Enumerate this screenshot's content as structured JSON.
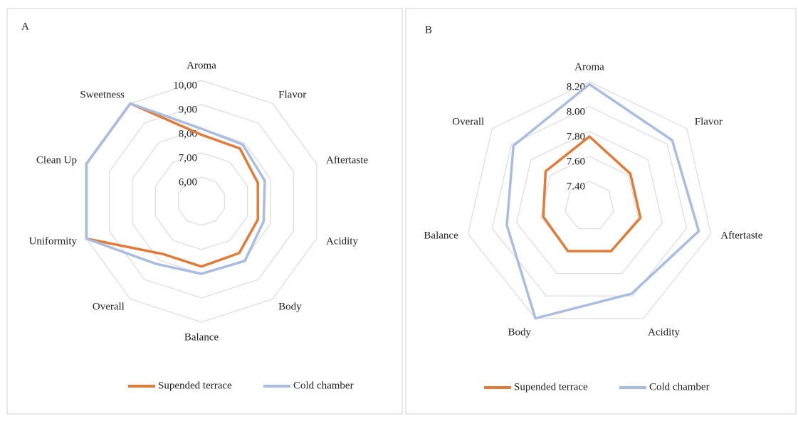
{
  "chart_data": [
    {
      "type": "radar",
      "title": "A",
      "categories": [
        "Aroma",
        "Flavor",
        "Aftertaste",
        "Acidity",
        "Body",
        "Balance",
        "Overall",
        "Uniformity",
        "Clean Up",
        "Sweetness"
      ],
      "ylim": [
        5,
        10
      ],
      "yticks": [
        {
          "value": 6,
          "label": "6,00"
        },
        {
          "value": 7,
          "label": "7,00"
        },
        {
          "value": 8,
          "label": "8,00"
        },
        {
          "value": 9,
          "label": "9,00"
        },
        {
          "value": 10,
          "label": "10,00"
        }
      ],
      "legend": "bottom",
      "series": [
        {
          "name": "Supended terrace",
          "color": "#e07b39",
          "values": [
            7.75,
            7.7,
            7.45,
            7.45,
            7.65,
            7.7,
            7.7,
            10,
            10,
            10
          ]
        },
        {
          "name": "Cold chamber",
          "color": "#a9bde2",
          "values": [
            8.0,
            7.9,
            7.75,
            7.7,
            8.05,
            8.0,
            8.2,
            10,
            10,
            10
          ]
        }
      ]
    },
    {
      "type": "radar",
      "title": "B",
      "categories": [
        "Aroma",
        "Flavor",
        "Aftertaste",
        "Acidity",
        "Body",
        "Balance",
        "Overall"
      ],
      "ylim": [
        7.2,
        8.2
      ],
      "yticks": [
        {
          "value": 7.4,
          "label": "7.40"
        },
        {
          "value": 7.6,
          "label": "7.60"
        },
        {
          "value": 7.8,
          "label": "7.80"
        },
        {
          "value": 8.0,
          "label": "8.00"
        },
        {
          "value": 8.2,
          "label": "8.20"
        }
      ],
      "legend": "bottom",
      "series": [
        {
          "name": "Supended terrace",
          "color": "#e07b39",
          "values": [
            7.76,
            7.62,
            7.62,
            7.6,
            7.6,
            7.58,
            7.65
          ]
        },
        {
          "name": "Cold chamber",
          "color": "#a9bde2",
          "values": [
            8.18,
            8.05,
            8.1,
            7.98,
            8.2,
            7.88,
            7.98
          ]
        }
      ]
    }
  ]
}
